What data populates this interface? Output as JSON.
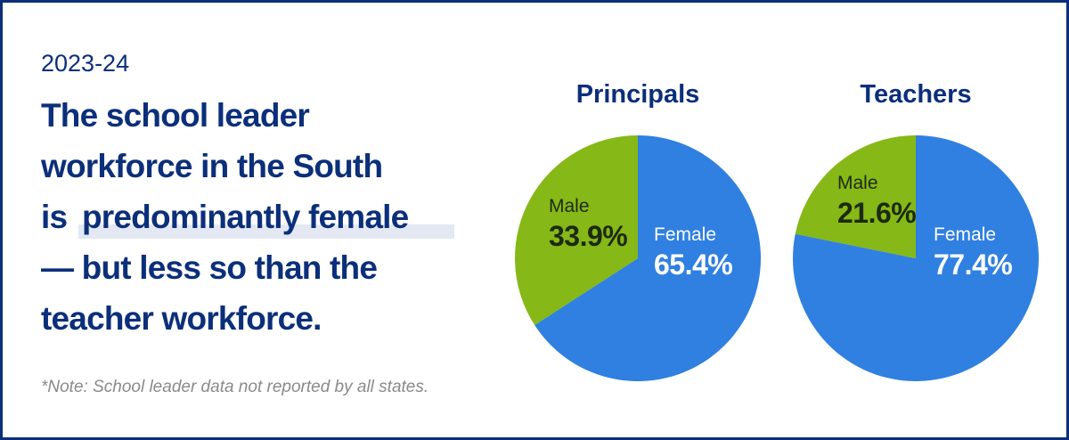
{
  "header": {
    "year": "2023-24",
    "headline": {
      "line1": "The school leader",
      "line2": "workforce in the South",
      "line3a": "is",
      "line3b": "predominantly female",
      "line4": "— but less so than the",
      "line5": "teacher workforce."
    }
  },
  "note": "*Note: School leader data not reported by all states.",
  "chart_data": [
    {
      "type": "pie",
      "title": "Principals",
      "categories": [
        "Male",
        "Female"
      ],
      "values": [
        33.9,
        65.4
      ],
      "value_labels": [
        "33.9%",
        "65.4%"
      ],
      "colors": [
        "#86b817",
        "#2f80e0"
      ]
    },
    {
      "type": "pie",
      "title": "Teachers",
      "categories": [
        "Male",
        "Female"
      ],
      "values": [
        21.6,
        77.4
      ],
      "value_labels": [
        "21.6%",
        "77.4%"
      ],
      "colors": [
        "#86b817",
        "#2f80e0"
      ]
    }
  ]
}
